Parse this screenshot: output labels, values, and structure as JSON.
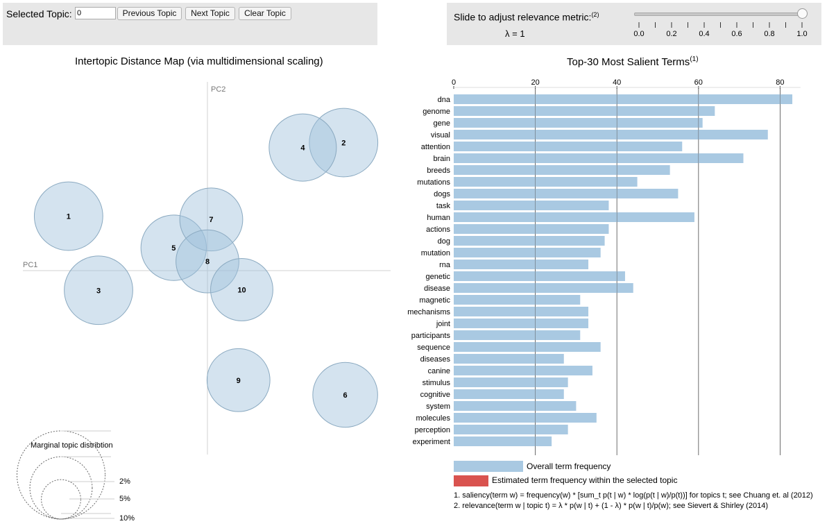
{
  "topic_selector": {
    "label": "Selected Topic:",
    "value": "0",
    "prev_label": "Previous Topic",
    "next_label": "Next Topic",
    "clear_label": "Clear Topic"
  },
  "relevance": {
    "label": "Slide to adjust relevance metric:",
    "label_ref": "(2)",
    "value_text": "λ = 1",
    "lambda": 1.0,
    "ticks": [
      "0.0",
      "0.2",
      "0.4",
      "0.6",
      "0.8",
      "1.0"
    ]
  },
  "map": {
    "title": "Intertopic Distance Map (via multidimensional scaling)",
    "pc1_label": "PC1",
    "pc2_label": "PC2",
    "marginal_title": "Marginal topic distribtion",
    "marginal_labels": [
      "2%",
      "5%",
      "10%"
    ]
  },
  "bars": {
    "title": "Top-30 Most Salient Terms",
    "title_ref": "(1)",
    "legend_overall": "Overall term frequency",
    "legend_estimated": "Estimated term frequency within the selected topic",
    "footnote1": "1. saliency(term w) = frequency(w) * [sum_t p(t | w) * log(p(t | w)/p(t))] for topics t; see Chuang et. al (2012)",
    "footnote2": "2. relevance(term w | topic t) = λ * p(w | t) + (1 - λ) * p(w | t)/p(w); see Sievert & Shirley (2014)"
  },
  "colors": {
    "bubble_fill": "#9fc2dc",
    "bubble_stroke": "#8aa9c0",
    "bar_overall": "#a9c9e2",
    "bar_estimated": "#d9534f",
    "panel_bg": "#e7e7e7"
  },
  "chart_data": [
    {
      "type": "scatter",
      "title": "Intertopic Distance Map (via multidimensional scaling)",
      "xlabel": "PC1",
      "ylabel": "PC2",
      "points": [
        {
          "topic": "1",
          "x": -0.255,
          "y": 0.1,
          "size_pct": 5.8
        },
        {
          "topic": "2",
          "x": 0.25,
          "y": 0.235,
          "size_pct": 5.8
        },
        {
          "topic": "3",
          "x": -0.2,
          "y": -0.036,
          "size_pct": 5.8
        },
        {
          "topic": "4",
          "x": 0.175,
          "y": 0.226,
          "size_pct": 5.6
        },
        {
          "topic": "5",
          "x": -0.062,
          "y": 0.042,
          "size_pct": 5.3
        },
        {
          "topic": "6",
          "x": 0.253,
          "y": -0.228,
          "size_pct": 5.2
        },
        {
          "topic": "7",
          "x": 0.007,
          "y": 0.094,
          "size_pct": 4.9
        },
        {
          "topic": "8",
          "x": 0.0,
          "y": 0.017,
          "size_pct": 4.9
        },
        {
          "topic": "9",
          "x": 0.057,
          "y": -0.201,
          "size_pct": 4.9
        },
        {
          "topic": "10",
          "x": 0.063,
          "y": -0.035,
          "size_pct": 4.8
        }
      ]
    },
    {
      "type": "bar",
      "orientation": "horizontal",
      "title": "Top-30 Most Salient Terms",
      "x_ticks": [
        0,
        20,
        40,
        60,
        80
      ],
      "xlim": [
        0,
        85
      ],
      "categories": [
        "dna",
        "genome",
        "gene",
        "visual",
        "attention",
        "brain",
        "breeds",
        "mutations",
        "dogs",
        "task",
        "human",
        "actions",
        "dog",
        "mutation",
        "rna",
        "genetic",
        "disease",
        "magnetic",
        "mechanisms",
        "joint",
        "participants",
        "sequence",
        "diseases",
        "canine",
        "stimulus",
        "cognitive",
        "system",
        "molecules",
        "perception",
        "experiment"
      ],
      "series": [
        {
          "name": "Overall term frequency",
          "values": [
            83,
            64,
            61,
            77,
            56,
            71,
            53,
            45,
            55,
            38,
            59,
            38,
            37,
            36,
            33,
            42,
            44,
            31,
            33,
            33,
            31,
            36,
            27,
            34,
            28,
            27,
            30,
            35,
            28,
            24
          ]
        }
      ]
    }
  ]
}
